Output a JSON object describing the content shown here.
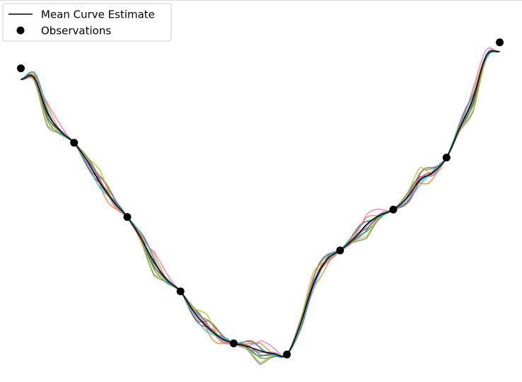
{
  "chart_data": {
    "type": "line",
    "title": "",
    "xlabel": "",
    "ylabel": "",
    "axes_visible": false,
    "grid": false,
    "legend_placement": "top-left",
    "xlim": [
      -0.02,
      9.02
    ],
    "ylim": [
      0.15,
      10.05
    ],
    "legend": {
      "mean_label": "Mean Curve Estimate",
      "observations_label": "Observations"
    },
    "observations": {
      "x": [
        0,
        1,
        2,
        3,
        4,
        5,
        6,
        7,
        8,
        9
      ],
      "y": [
        8.4,
        6.4,
        4.4,
        2.4,
        1.0,
        0.7,
        3.5,
        4.6,
        6.0,
        9.1
      ]
    },
    "mean_curve": {
      "x": [
        0,
        0.25,
        0.5,
        0.75,
        1,
        1.25,
        1.5,
        1.75,
        2,
        2.25,
        2.5,
        2.75,
        3,
        3.25,
        3.5,
        3.75,
        4,
        4.25,
        4.5,
        4.75,
        5,
        5.25,
        5.5,
        5.75,
        6,
        6.25,
        6.5,
        6.75,
        7,
        7.25,
        7.5,
        7.75,
        8,
        8.25,
        8.5,
        8.75,
        9
      ],
      "y": [
        8.1,
        8.15,
        7.2,
        6.7,
        6.4,
        5.9,
        5.3,
        4.8,
        4.4,
        3.85,
        3.2,
        2.7,
        2.4,
        1.85,
        1.45,
        1.15,
        1.0,
        0.92,
        0.8,
        0.72,
        0.7,
        1.5,
        2.6,
        3.25,
        3.5,
        3.8,
        4.2,
        4.45,
        4.6,
        4.9,
        5.4,
        5.6,
        6.0,
        6.8,
        7.6,
        8.75,
        8.85
      ]
    },
    "samples": {
      "count": 10,
      "colors": [
        "#1f77b4",
        "#ff7f0e",
        "#2ca02c",
        "#d62728",
        "#9467bd",
        "#8c564b",
        "#e377c2",
        "#7f7f7f",
        "#bcbd22",
        "#17becf"
      ]
    },
    "colors": {
      "mean_line": "#000000",
      "observation_marker": "#000000",
      "legend_border": "#cccccc"
    }
  }
}
